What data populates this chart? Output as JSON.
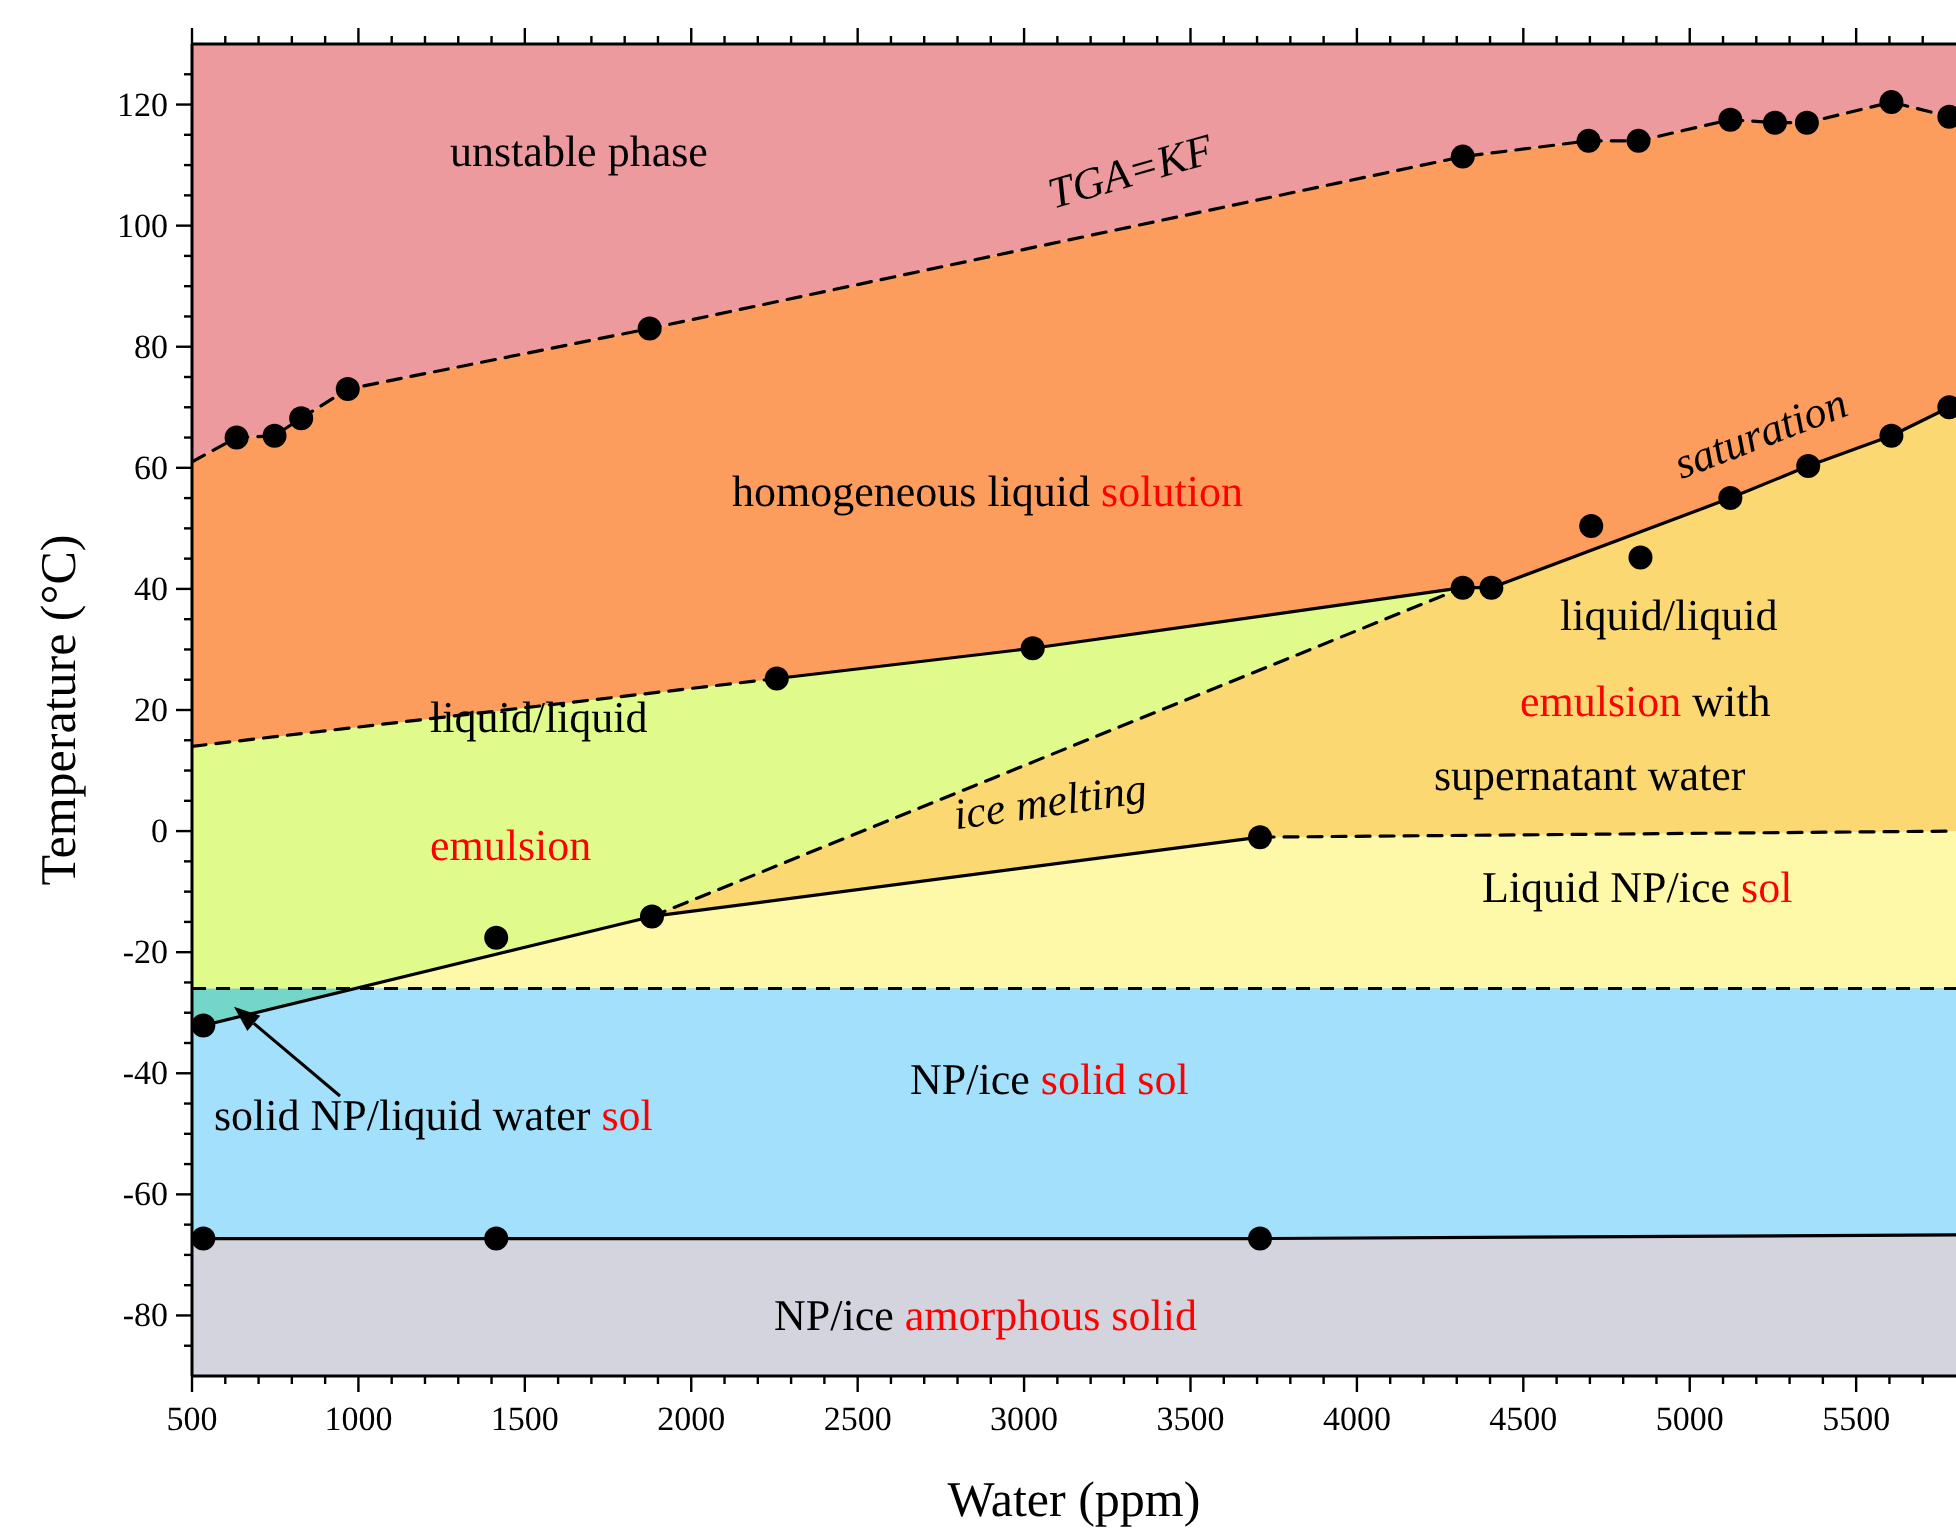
{
  "chart_data": {
    "type": "line",
    "xlabel": "Water (ppm)",
    "ylabel": "Temperature (°C)",
    "xlim": [
      500,
      5800
    ],
    "ylim": [
      -90,
      130
    ],
    "xticks": [
      500,
      {
        "value": 600,
        "label": null
      },
      {
        "value": 700,
        "label": null
      },
      {
        "value": 800,
        "label": null
      },
      {
        "value": 900,
        "label": null
      },
      1000,
      {
        "value": 1100,
        "label": null
      },
      {
        "value": 1200,
        "label": null
      },
      {
        "value": 1300,
        "label": null
      },
      {
        "value": 1400,
        "label": null
      },
      1500,
      {
        "value": 1600,
        "label": null
      },
      {
        "value": 1700,
        "label": null
      },
      {
        "value": 1800,
        "label": null
      },
      {
        "value": 1900,
        "label": null
      },
      2000,
      {
        "value": 2100,
        "label": null
      },
      {
        "value": 2200,
        "label": null
      },
      {
        "value": 2300,
        "label": null
      },
      {
        "value": 2400,
        "label": null
      },
      2500,
      {
        "value": 2600,
        "label": null
      },
      {
        "value": 2700,
        "label": null
      },
      {
        "value": 2800,
        "label": null
      },
      {
        "value": 2900,
        "label": null
      },
      3000,
      {
        "value": 3100,
        "label": null
      },
      {
        "value": 3200,
        "label": null
      },
      {
        "value": 3300,
        "label": null
      },
      {
        "value": 3400,
        "label": null
      },
      3500,
      {
        "value": 3600,
        "label": null
      },
      {
        "value": 3700,
        "label": null
      },
      {
        "value": 3800,
        "label": null
      },
      {
        "value": 3900,
        "label": null
      },
      4000,
      {
        "value": 4100,
        "label": null
      },
      {
        "value": 4200,
        "label": null
      },
      {
        "value": 4300,
        "label": null
      },
      {
        "value": 4400,
        "label": null
      },
      4500,
      {
        "value": 4600,
        "label": null
      },
      {
        "value": 4700,
        "label": null
      },
      {
        "value": 4800,
        "label": null
      },
      {
        "value": 4900,
        "label": null
      },
      5000,
      {
        "value": 5100,
        "label": null
      },
      {
        "value": 5200,
        "label": null
      },
      {
        "value": 5300,
        "label": null
      },
      {
        "value": 5400,
        "label": null
      },
      5500,
      {
        "value": 5600,
        "label": null
      },
      {
        "value": 5700,
        "label": null
      }
    ],
    "yticks": [
      {
        "value": -85,
        "label": null
      },
      -80,
      {
        "value": -75,
        "label": null
      },
      {
        "value": -70,
        "label": null
      },
      {
        "value": -65,
        "label": null
      },
      -60,
      {
        "value": -55,
        "label": null
      },
      {
        "value": -50,
        "label": null
      },
      {
        "value": -45,
        "label": null
      },
      -40,
      {
        "value": -35,
        "label": null
      },
      {
        "value": -30,
        "label": null
      },
      {
        "value": -25,
        "label": null
      },
      -20,
      {
        "value": -15,
        "label": null
      },
      {
        "value": -10,
        "label": null
      },
      {
        "value": -5,
        "label": null
      },
      0,
      {
        "value": 5,
        "label": null
      },
      {
        "value": 10,
        "label": null
      },
      {
        "value": 15,
        "label": null
      },
      20,
      {
        "value": 25,
        "label": null
      },
      {
        "value": 30,
        "label": null
      },
      {
        "value": 35,
        "label": null
      },
      40,
      {
        "value": 45,
        "label": null
      },
      {
        "value": 50,
        "label": null
      },
      {
        "value": 55,
        "label": null
      },
      60,
      {
        "value": 65,
        "label": null
      },
      {
        "value": 70,
        "label": null
      },
      {
        "value": 75,
        "label": null
      },
      80,
      {
        "value": 85,
        "label": null
      },
      {
        "value": 90,
        "label": null
      },
      {
        "value": 95,
        "label": null
      },
      100,
      {
        "value": 105,
        "label": null
      },
      {
        "value": 110,
        "label": null
      },
      {
        "value": 115,
        "label": null
      },
      120,
      {
        "value": 125,
        "label": null
      }
    ],
    "grid": false,
    "series": [
      {
        "color": "#000000",
        "line_style": "dashed",
        "x": [
          500,
          634,
          748,
          828,
          968,
          1875,
          4318,
          4696,
          4846,
          5122,
          5256,
          5352,
          5606,
          5780,
          5800
        ],
        "values": [
          61,
          65,
          65.3,
          68.2,
          73,
          83,
          111.4,
          114,
          114,
          117.5,
          117,
          117,
          120.4,
          118,
          117.8
        ]
      },
      {
        "color": "#000000",
        "line_style": "dashed",
        "x": [
          500,
          2257
        ],
        "values": [
          14,
          25.2
        ]
      },
      {
        "color": "#000000",
        "line_style": "solid",
        "x": [
          2257,
          3026,
          4318,
          4404,
          5122,
          5356,
          5606,
          5780,
          5800
        ],
        "values": [
          25.2,
          30.2,
          40.2,
          40.2,
          55,
          60.3,
          65.3,
          70,
          70.5
        ]
      },
      {
        "color": "#000000",
        "line_style": "dashed",
        "x": [
          1882,
          4318
        ],
        "values": [
          -14.1,
          40.2
        ]
      },
      {
        "color": "#000000",
        "line_style": "solid",
        "x": [
          534,
          1882,
          3709
        ],
        "values": [
          -32.1,
          -14.1,
          -1
        ]
      },
      {
        "color": "#000000",
        "line_style": "dashed",
        "x": [
          3709,
          5800
        ],
        "values": [
          -1,
          0
        ]
      },
      {
        "color": "#000000",
        "line_style": "solid",
        "x": [
          534,
          1414,
          3709,
          5800
        ],
        "values": [
          -67.3,
          -67.3,
          -67.3,
          -66.7
        ]
      },
      {
        "type": "scatter",
        "color": "#000000",
        "marker": "circle",
        "x": [
          634,
          748,
          828,
          968,
          1875,
          4318,
          4696,
          4846,
          5122,
          5256,
          5352,
          5606,
          5780,
          2257,
          3026,
          4318,
          4404,
          4704,
          4852,
          5122,
          5356,
          5606,
          5780,
          534,
          1414,
          1882,
          3709,
          534,
          1414,
          3709
        ],
        "values": [
          65,
          65.3,
          68.2,
          73,
          83,
          111.4,
          114,
          114,
          117.5,
          117,
          117,
          120.4,
          118,
          25.2,
          30.2,
          40.2,
          40.2,
          50.4,
          45.2,
          55,
          60.3,
          65.3,
          70,
          -32.1,
          -17.6,
          -14.1,
          -1,
          -67.3,
          -67.3,
          -67.3
        ]
      }
    ],
    "ref_lines": [
      {
        "axis": "y",
        "value": -26,
        "color": "#000000",
        "line_style": "dashed"
      }
    ],
    "annotations": [
      "unstable phase",
      "TGA=KF",
      "homogeneous liquid",
      "solution",
      "saturation",
      "liquid/liquid",
      "emulsion",
      "with",
      "supernatant water",
      "liquid/liquid",
      "emulsion",
      "ice melting",
      "Liquid NP/ice",
      "sol",
      "NP/ice",
      "solid sol",
      {
        "text": "solid NP/liquid water",
        "x": 626,
        "y": -29
      },
      "sol",
      "NP/ice",
      "amorphous solid"
    ]
  }
}
